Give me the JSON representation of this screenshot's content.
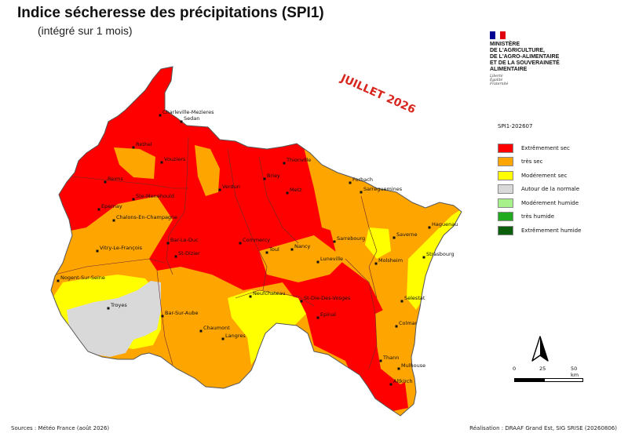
{
  "title": "Indice sécheresse des précipitations (SPI1)",
  "subtitle": "(intégré sur 1 mois)",
  "ministry": {
    "name": "Ministère\nde l'Agriculture,\nde l'Agro-alimentaire\net de la Souveraineté\nalimentaire",
    "motto": "Liberté\nÉgalité\nFraternité",
    "flag_colors": [
      "#000091",
      "#ffffff",
      "#e1000f"
    ]
  },
  "period_stamp": "JUILLET 2026",
  "legend": {
    "title": "SPI1-202607",
    "items": [
      {
        "label": "Extrêmement sec",
        "color": "#ff0000"
      },
      {
        "label": "très sec",
        "color": "#ffa500"
      },
      {
        "label": "Modérement sec",
        "color": "#ffff00"
      },
      {
        "label": "Autour de la normale",
        "color": "#d9d9d9"
      },
      {
        "label": "Modérement humide",
        "color": "#a8f08a"
      },
      {
        "label": "très humide",
        "color": "#1faa1f"
      },
      {
        "label": "Extrêmement humide",
        "color": "#0b5e0b"
      }
    ]
  },
  "scale_bar": {
    "labels": [
      "0",
      "25",
      "50 km"
    ]
  },
  "cities": [
    {
      "name": "Charleville-Mezieres"
    },
    {
      "name": "Sedan"
    },
    {
      "name": "Rethel"
    },
    {
      "name": "Vouziers"
    },
    {
      "name": "Reims"
    },
    {
      "name": "Ste-Menehould"
    },
    {
      "name": "Epernay"
    },
    {
      "name": "Chalons-En-Champagne"
    },
    {
      "name": "Vitry-Le-François"
    },
    {
      "name": "Bar-Le-Duc"
    },
    {
      "name": "St-Dizier"
    },
    {
      "name": "Verdun"
    },
    {
      "name": "Commercy"
    },
    {
      "name": "Toul"
    },
    {
      "name": "Nancy"
    },
    {
      "name": "Briey"
    },
    {
      "name": "Metz"
    },
    {
      "name": "Thionville"
    },
    {
      "name": "Forbach"
    },
    {
      "name": "Sarreguemines"
    },
    {
      "name": "Sarrebourg"
    },
    {
      "name": "Saverne"
    },
    {
      "name": "Haguenau"
    },
    {
      "name": "Strasbourg"
    },
    {
      "name": "Molsheim"
    },
    {
      "name": "Luneville"
    },
    {
      "name": "Nogent-Sur-Seine"
    },
    {
      "name": "Troyes"
    },
    {
      "name": "Bar-Sur-Aube"
    },
    {
      "name": "Chaumont"
    },
    {
      "name": "Langres"
    },
    {
      "name": "Neufchateau"
    },
    {
      "name": "St-Die-Des-Vosges"
    },
    {
      "name": "Epinal"
    },
    {
      "name": "Selestat"
    },
    {
      "name": "Colmar"
    },
    {
      "name": "Thann"
    },
    {
      "name": "Mulhouse"
    },
    {
      "name": "Altkirch"
    }
  ],
  "footer": {
    "sources": "Sources : Météo France (août 2026)",
    "credit": "Réalisation : DRAAF Grand Est, SIG SRISE (20260806)"
  }
}
